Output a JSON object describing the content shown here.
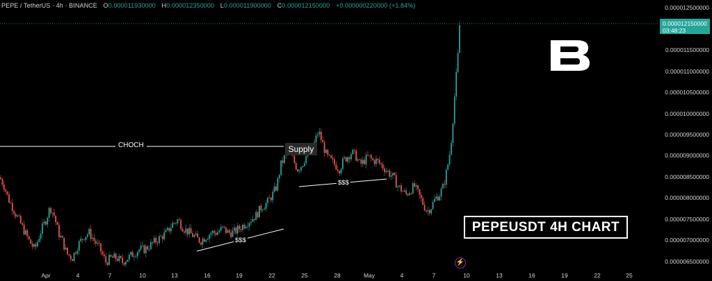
{
  "legend": {
    "symbol": "PEPE / TetherUS · 4h · BINANCE",
    "open_label": "O",
    "open": "0.000011930000",
    "high_label": "H",
    "high": "0.000012350000",
    "low_label": "L",
    "low": "0.000011900000",
    "close_label": "C",
    "close": "0.000012150000",
    "change": "+0.000000220000 (+1.84%)"
  },
  "price_tag": {
    "price": "0.000012150000",
    "countdown": "03:48:23"
  },
  "annotations": {
    "choch": "CHOCH",
    "supply": "Supply",
    "liquidity_1": "$$$",
    "liquidity_2": "$$$"
  },
  "title_box": "PEPEUSDT 4H CHART",
  "colors": {
    "up": "#26a69a",
    "down": "#ef5350",
    "background": "#000000"
  },
  "icons": {
    "logo": "brand-b-logo",
    "event": "lightning-icon"
  },
  "chart_data": {
    "type": "candlestick",
    "yaxis_ticks": [
      "0.000012500000",
      "0.000012000000",
      "0.000011500000",
      "0.000011000000",
      "0.000010500000",
      "0.000010000000",
      "0.000009500000",
      "0.000009000000",
      "0.000008500000",
      "0.000008000000",
      "0.000007500000",
      "0.000007000000",
      "0.000006500000"
    ],
    "xaxis_ticks": [
      "Apr",
      "4",
      "7",
      "10",
      "13",
      "16",
      "19",
      "22",
      "25",
      "28",
      "May",
      "4",
      "7",
      "10",
      "13",
      "16",
      "19",
      "22",
      "25"
    ],
    "ylim": [
      6.3e-06,
      1.27e-05
    ],
    "path": [
      [
        0,
        8.5e-06
      ],
      [
        6,
        8.3e-06
      ],
      [
        12,
        8e-06
      ],
      [
        18,
        7.8e-06
      ],
      [
        24,
        7.6e-06
      ],
      [
        30,
        7.4e-06
      ],
      [
        36,
        7.2e-06
      ],
      [
        42,
        7e-06
      ],
      [
        50,
        6.8e-06
      ],
      [
        58,
        7.2e-06
      ],
      [
        66,
        7.5e-06
      ],
      [
        72,
        7.8e-06
      ],
      [
        78,
        7.6e-06
      ],
      [
        84,
        7.2e-06
      ],
      [
        90,
        7e-06
      ],
      [
        96,
        6.7e-06
      ],
      [
        104,
        6.6e-06
      ],
      [
        112,
        6.9e-06
      ],
      [
        120,
        7.1e-06
      ],
      [
        128,
        7.2e-06
      ],
      [
        136,
        7e-06
      ],
      [
        144,
        6.8e-06
      ],
      [
        152,
        6.5e-06
      ],
      [
        160,
        6.6e-06
      ],
      [
        168,
        6.6e-06
      ],
      [
        176,
        6.5e-06
      ],
      [
        184,
        6.6e-06
      ],
      [
        192,
        6.7e-06
      ],
      [
        200,
        6.8e-06
      ],
      [
        208,
        6.8e-06
      ],
      [
        216,
        6.9e-06
      ],
      [
        224,
        7e-06
      ],
      [
        232,
        7.1e-06
      ],
      [
        240,
        7.2e-06
      ],
      [
        248,
        7.4e-06
      ],
      [
        256,
        7.5e-06
      ],
      [
        264,
        7.3e-06
      ],
      [
        272,
        7.2e-06
      ],
      [
        280,
        7.1e-06
      ],
      [
        288,
        7e-06
      ],
      [
        296,
        7.1e-06
      ],
      [
        304,
        7.2e-06
      ],
      [
        312,
        7.2e-06
      ],
      [
        320,
        7.3e-06
      ],
      [
        328,
        7.2e-06
      ],
      [
        336,
        7.2e-06
      ],
      [
        344,
        7.3e-06
      ],
      [
        352,
        7.4e-06
      ],
      [
        360,
        7.5e-06
      ],
      [
        368,
        7.6e-06
      ],
      [
        376,
        7.8e-06
      ],
      [
        384,
        7.9e-06
      ],
      [
        392,
        8.1e-06
      ],
      [
        398,
        8.3e-06
      ],
      [
        404,
        8.8e-06
      ],
      [
        410,
        9e-06
      ],
      [
        416,
        9.2e-06
      ],
      [
        422,
        8.9e-06
      ],
      [
        428,
        8.7e-06
      ],
      [
        434,
        8.8e-06
      ],
      [
        440,
        9e-06
      ],
      [
        446,
        9.1e-06
      ],
      [
        452,
        9.3e-06
      ],
      [
        458,
        9.6e-06
      ],
      [
        464,
        9.3e-06
      ],
      [
        470,
        9e-06
      ],
      [
        476,
        8.9e-06
      ],
      [
        482,
        8.8e-06
      ],
      [
        488,
        8.7e-06
      ],
      [
        494,
        8.9e-06
      ],
      [
        500,
        9e-06
      ],
      [
        506,
        9.1e-06
      ],
      [
        512,
        9e-06
      ],
      [
        518,
        8.8e-06
      ],
      [
        524,
        8.9e-06
      ],
      [
        530,
        9e-06
      ],
      [
        536,
        8.9e-06
      ],
      [
        542,
        8.9e-06
      ],
      [
        548,
        8.8e-06
      ],
      [
        554,
        8.7e-06
      ],
      [
        560,
        8.6e-06
      ],
      [
        566,
        8.5e-06
      ],
      [
        572,
        8.3e-06
      ],
      [
        578,
        8.2e-06
      ],
      [
        584,
        8.1e-06
      ],
      [
        590,
        8.2e-06
      ],
      [
        596,
        8.3e-06
      ],
      [
        602,
        8.1e-06
      ],
      [
        608,
        7.9e-06
      ],
      [
        614,
        7.7e-06
      ],
      [
        620,
        7.8e-06
      ],
      [
        626,
        8e-06
      ],
      [
        632,
        8.1e-06
      ],
      [
        638,
        8.3e-06
      ],
      [
        644,
        8.8e-06
      ],
      [
        648,
        9.2e-06
      ],
      [
        652,
        1e-05
      ],
      [
        655,
        1.07e-05
      ],
      [
        658,
        1.12e-05
      ],
      [
        661,
        1.21e-05
      ],
      [
        664,
        1.22e-05
      ]
    ]
  }
}
